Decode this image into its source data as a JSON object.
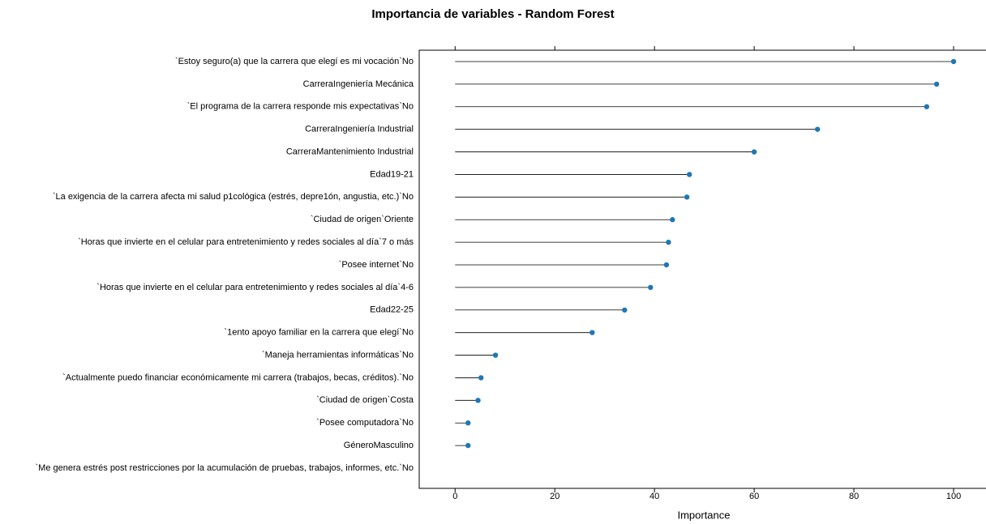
{
  "chart_data": {
    "type": "lollipop",
    "title": "Importancia de variables - Random Forest",
    "x_label": "Importance",
    "categories": [
      "`Estoy seguro(a) que la carrera que elegí es mi vocación`No",
      "CarreraIngeniería Mecánica",
      "`El programa de la carrera responde mis expectativas`No",
      "CarreraIngeniería Industrial",
      "CarreraMantenimiento Industrial",
      "Edad19-21",
      "`La exigencia de la carrera afecta mi salud p1cológica (estrés, depre1ón, angustia, etc.)`No",
      "`Ciudad de origen`Oriente",
      "`Horas que invierte en el celular para entretenimiento y redes sociales al día`7 o más",
      "`Posee internet`No",
      "`Horas que invierte en el celular para entretenimiento y redes sociales al día`4-6",
      "Edad22-25",
      "`1ento apoyo familiar en la carrera que elegí`No",
      "`Maneja herramientas informáticas`No",
      "`Actualmente puedo financiar económicamente mi carrera (trabajos, becas, créditos).`No",
      "`Ciudad de origen`Costa",
      "`Posee computadora`No",
      "GéneroMasculino",
      "`Me genera estrés post restricciones por la acumulación de pruebas, trabajos, informes, etc.`No"
    ],
    "values": [
      100,
      96.6,
      94.6,
      72.7,
      60,
      47,
      46.5,
      43.6,
      42.8,
      42.4,
      39.2,
      34,
      27.5,
      8.1,
      5.2,
      4.6,
      2.6,
      2.6,
      null
    ],
    "color": "#1f77b4",
    "xlim": [
      -7.2,
      106.5
    ],
    "xticks": [
      0,
      20,
      40,
      60,
      80,
      100
    ]
  }
}
